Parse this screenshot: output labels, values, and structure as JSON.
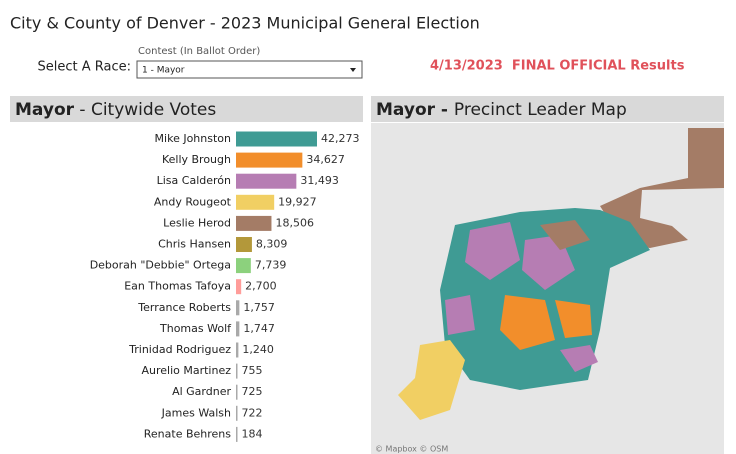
{
  "header": {
    "title": "City & County of Denver - 2023 Municipal General Election",
    "select_label": "Select A Race:",
    "contest_label": "Contest (In Ballot Order)",
    "selected_race": "1 - Mayor",
    "status": "4/13/2023  FINAL OFFICIAL Results"
  },
  "map_panel": {
    "title_bold": "Mayor - ",
    "title": "Precinct Leader Map",
    "attribution": "© Mapbox  © OSM"
  },
  "chart_data": {
    "type": "bar",
    "orientation": "horizontal",
    "title_bold": "Mayor",
    "title": " - Citywide Votes",
    "categories": [
      "Mike Johnston",
      "Kelly Brough",
      "Lisa Calderón",
      "Andy Rougeot",
      "Leslie Herod",
      "Chris Hansen",
      "Deborah \"Debbie\" Ortega",
      "Ean Thomas Tafoya",
      "Terrance Roberts",
      "Thomas Wolf",
      "Trinidad Rodriguez",
      "Aurelio Martinez",
      "Al Gardner",
      "James Walsh",
      "Renate Behrens"
    ],
    "values": [
      42273,
      34627,
      31493,
      19927,
      18506,
      8309,
      7739,
      2700,
      1757,
      1747,
      1240,
      755,
      725,
      722,
      184
    ],
    "value_labels": [
      "42,273",
      "34,627",
      "31,493",
      "19,927",
      "18,506",
      "8,309",
      "7,739",
      "2,700",
      "1,757",
      "1,747",
      "1,240",
      "755",
      "725",
      "722",
      "184"
    ],
    "colors": [
      "#3f9b94",
      "#f28e2b",
      "#b67db3",
      "#f1cf63",
      "#a47c66",
      "#b3983a",
      "#8cd17d",
      "#ff9d9a",
      "#a9a9a9",
      "#a9a9a9",
      "#a9a9a9",
      "#a9a9a9",
      "#a9a9a9",
      "#a9a9a9",
      "#a9a9a9"
    ]
  }
}
